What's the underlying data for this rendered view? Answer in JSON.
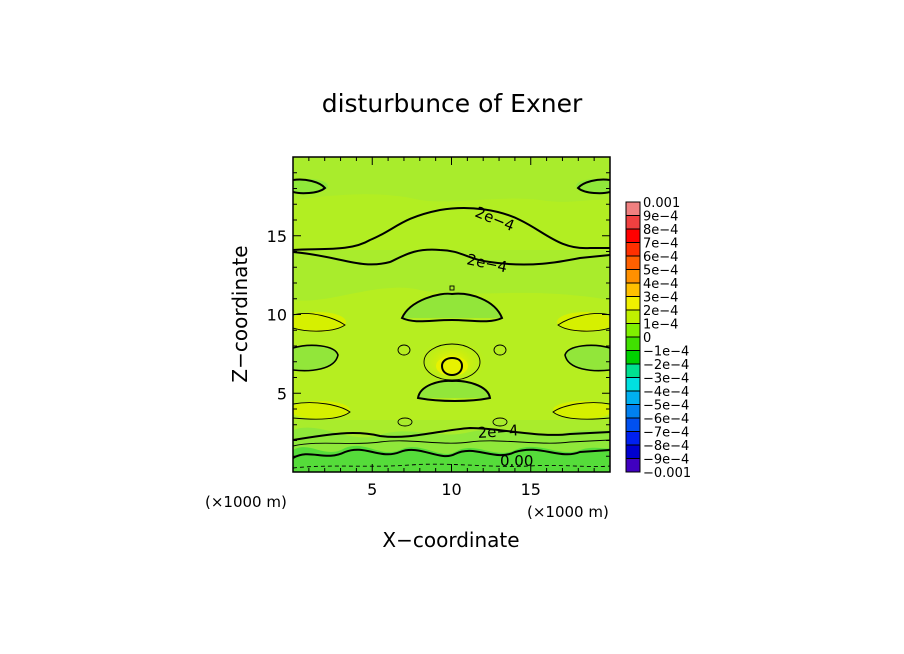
{
  "chart_data": {
    "type": "heatmap",
    "title": "disturbunce of Exner",
    "xlabel": "X−coordinate",
    "ylabel": "Z−coordinate",
    "x_unit": "(×1000 m)",
    "y_unit": "(×1000 m)",
    "xlim": [
      0,
      20
    ],
    "ylim": [
      0,
      20
    ],
    "xticks": [
      5,
      10,
      15
    ],
    "yticks": [
      5,
      10,
      15
    ],
    "xtick_labels": [
      "5",
      "10",
      "15"
    ],
    "ytick_labels": [
      "5",
      "10",
      "15"
    ],
    "contour_labels": [
      {
        "text": "2e−4",
        "x": 15.3,
        "z": 16.0
      },
      {
        "text": "2e−4",
        "x": 12.2,
        "z": 13.2
      },
      {
        "text": "2e−4",
        "x": 12.8,
        "z": 2.4
      },
      {
        "text": "0.00",
        "x": 14.1,
        "z": 0.6
      }
    ],
    "colorbar": {
      "levels": [
        "0.001",
        "9e−4",
        "8e−4",
        "7e−4",
        "6e−4",
        "5e−4",
        "4e−4",
        "3e−4",
        "2e−4",
        "1e−4",
        "0",
        "−1e−4",
        "−2e−4",
        "−3e−4",
        "−4e−4",
        "−5e−4",
        "−6e−4",
        "−7e−4",
        "−8e−4",
        "−9e−4",
        "−0.001"
      ],
      "colors": [
        "#f08080",
        "#f04040",
        "#ff0000",
        "#ff3000",
        "#ff6000",
        "#ff9000",
        "#ffc000",
        "#f0f000",
        "#c0f000",
        "#80f000",
        "#40e000",
        "#00d000",
        "#00e090",
        "#00e0e0",
        "#00b0f0",
        "#0080f0",
        "#0050f0",
        "#0020f0",
        "#0000d0",
        "#4000c0"
      ]
    }
  }
}
